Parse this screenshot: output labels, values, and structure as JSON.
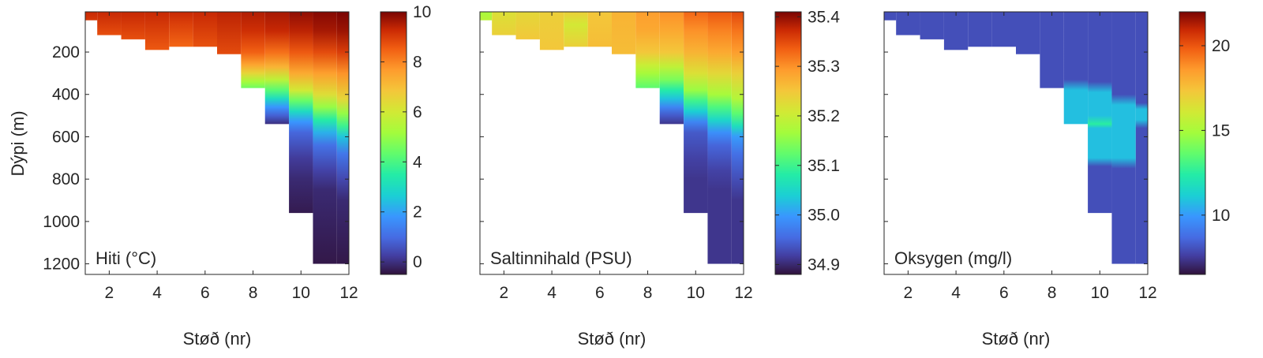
{
  "figure": {
    "ylabel": "Dýpi (m)",
    "xlabel": "Støð (nr)"
  },
  "chart_data": [
    {
      "type": "heatmap",
      "panel_label": "Hiti (°C)",
      "xlabel": "Støð (nr)",
      "ylabel": "Dýpi (m)",
      "xlim": [
        1,
        12
      ],
      "ylim": [
        1250,
        10
      ],
      "xticks": [
        2,
        4,
        6,
        8,
        10,
        12
      ],
      "yticks": [
        200,
        400,
        600,
        800,
        1000,
        1200
      ],
      "colorbar": {
        "ticks": [
          "0",
          "2",
          "4",
          "6",
          "8",
          "10"
        ],
        "min": -0.5,
        "max": 10
      },
      "stations": [
        1,
        2,
        3,
        4,
        5,
        6,
        7,
        8,
        9,
        10,
        11,
        12
      ],
      "bottom_depth_m": [
        50,
        120,
        140,
        190,
        175,
        175,
        210,
        370,
        540,
        960,
        1200,
        1200
      ],
      "profiles": [
        [
          [
            10,
            9.3
          ],
          [
            60,
            9.0
          ]
        ],
        [
          [
            10,
            9.3
          ],
          [
            130,
            8.7
          ]
        ],
        [
          [
            10,
            9.3
          ],
          [
            150,
            8.7
          ]
        ],
        [
          [
            10,
            9.3
          ],
          [
            190,
            8.6
          ]
        ],
        [
          [
            10,
            9.3
          ],
          [
            60,
            9.0
          ],
          [
            180,
            8.4
          ]
        ],
        [
          [
            10,
            9.3
          ],
          [
            180,
            8.7
          ]
        ],
        [
          [
            10,
            9.4
          ],
          [
            210,
            8.8
          ]
        ],
        [
          [
            10,
            9.5
          ],
          [
            100,
            9.2
          ],
          [
            200,
            8.5
          ],
          [
            260,
            7.5
          ],
          [
            300,
            6.5
          ],
          [
            340,
            5.2
          ],
          [
            370,
            4.5
          ]
        ],
        [
          [
            10,
            9.6
          ],
          [
            100,
            9.3
          ],
          [
            200,
            8.3
          ],
          [
            270,
            7.2
          ],
          [
            330,
            5.6
          ],
          [
            380,
            4.2
          ],
          [
            420,
            3.0
          ],
          [
            460,
            1.8
          ],
          [
            500,
            0.8
          ],
          [
            540,
            0.0
          ]
        ],
        [
          [
            10,
            9.8
          ],
          [
            100,
            9.4
          ],
          [
            200,
            8.6
          ],
          [
            300,
            7.4
          ],
          [
            380,
            6.0
          ],
          [
            430,
            4.4
          ],
          [
            480,
            3.0
          ],
          [
            530,
            1.8
          ],
          [
            580,
            0.9
          ],
          [
            700,
            0.2
          ],
          [
            800,
            -0.1
          ],
          [
            960,
            -0.35
          ]
        ],
        [
          [
            10,
            9.9
          ],
          [
            100,
            9.6
          ],
          [
            200,
            8.8
          ],
          [
            300,
            7.6
          ],
          [
            400,
            6.3
          ],
          [
            460,
            5.0
          ],
          [
            520,
            3.5
          ],
          [
            580,
            2.2
          ],
          [
            640,
            1.1
          ],
          [
            760,
            0.3
          ],
          [
            850,
            -0.1
          ],
          [
            1200,
            -0.4
          ]
        ],
        [
          [
            10,
            10.0
          ],
          [
            100,
            9.7
          ],
          [
            200,
            9.0
          ],
          [
            300,
            7.8
          ],
          [
            420,
            6.5
          ],
          [
            490,
            5.0
          ],
          [
            550,
            3.8
          ],
          [
            600,
            2.5
          ],
          [
            680,
            1.2
          ],
          [
            800,
            0.4
          ],
          [
            900,
            -0.1
          ],
          [
            1200,
            -0.4
          ]
        ]
      ]
    },
    {
      "type": "heatmap",
      "panel_label": "Saltinnihald (PSU)",
      "xlabel": "Støð (nr)",
      "ylabel": "",
      "xlim": [
        1,
        12
      ],
      "ylim": [
        1250,
        10
      ],
      "xticks": [
        2,
        4,
        6,
        8,
        10,
        12
      ],
      "yticks": [
        200,
        400,
        600,
        800,
        1000,
        1200
      ],
      "colorbar": {
        "ticks": [
          "34.9",
          "35.0",
          "35.1",
          "35.2",
          "35.3",
          "35.4"
        ],
        "min": 34.88,
        "max": 35.41
      },
      "stations": [
        1,
        2,
        3,
        4,
        5,
        6,
        7,
        8,
        9,
        10,
        11,
        12
      ],
      "bottom_depth_m": [
        50,
        120,
        140,
        190,
        175,
        175,
        210,
        370,
        540,
        960,
        1200,
        1200
      ],
      "profiles": [
        [
          [
            10,
            35.17
          ],
          [
            60,
            35.19
          ]
        ],
        [
          [
            10,
            35.22
          ],
          [
            130,
            35.24
          ]
        ],
        [
          [
            10,
            35.23
          ],
          [
            150,
            35.25
          ]
        ],
        [
          [
            10,
            35.24
          ],
          [
            190,
            35.25
          ]
        ],
        [
          [
            10,
            35.24
          ],
          [
            70,
            35.21
          ],
          [
            180,
            35.24
          ]
        ],
        [
          [
            10,
            35.25
          ],
          [
            180,
            35.26
          ]
        ],
        [
          [
            10,
            35.27
          ],
          [
            210,
            35.26
          ]
        ],
        [
          [
            10,
            35.29
          ],
          [
            100,
            35.28
          ],
          [
            200,
            35.25
          ],
          [
            260,
            35.2
          ],
          [
            300,
            35.17
          ],
          [
            340,
            35.14
          ],
          [
            370,
            35.12
          ]
        ],
        [
          [
            10,
            35.3
          ],
          [
            100,
            35.28
          ],
          [
            200,
            35.25
          ],
          [
            270,
            35.19
          ],
          [
            330,
            35.14
          ],
          [
            380,
            35.08
          ],
          [
            420,
            35.03
          ],
          [
            460,
            34.98
          ],
          [
            500,
            34.94
          ],
          [
            540,
            34.91
          ]
        ],
        [
          [
            10,
            35.33
          ],
          [
            100,
            35.3
          ],
          [
            200,
            35.27
          ],
          [
            300,
            35.22
          ],
          [
            380,
            35.16
          ],
          [
            430,
            35.1
          ],
          [
            480,
            35.04
          ],
          [
            530,
            34.98
          ],
          [
            580,
            34.94
          ],
          [
            700,
            34.92
          ],
          [
            800,
            34.91
          ],
          [
            960,
            34.91
          ]
        ],
        [
          [
            10,
            35.34
          ],
          [
            100,
            35.31
          ],
          [
            200,
            35.28
          ],
          [
            300,
            35.23
          ],
          [
            400,
            35.17
          ],
          [
            460,
            35.11
          ],
          [
            520,
            35.05
          ],
          [
            580,
            34.99
          ],
          [
            640,
            34.95
          ],
          [
            760,
            34.92
          ],
          [
            850,
            34.91
          ],
          [
            1200,
            34.91
          ]
        ],
        [
          [
            10,
            35.35
          ],
          [
            100,
            35.32
          ],
          [
            200,
            35.29
          ],
          [
            300,
            35.24
          ],
          [
            420,
            35.18
          ],
          [
            490,
            35.12
          ],
          [
            550,
            35.06
          ],
          [
            600,
            35.0
          ],
          [
            680,
            34.96
          ],
          [
            800,
            34.93
          ],
          [
            900,
            34.91
          ],
          [
            1200,
            34.91
          ]
        ]
      ]
    },
    {
      "type": "heatmap",
      "panel_label": "Oksygen (mg/l)",
      "xlabel": "Støð (nr)",
      "ylabel": "",
      "xlim": [
        1,
        12
      ],
      "ylim": [
        1250,
        10
      ],
      "xticks": [
        2,
        4,
        6,
        8,
        10,
        12
      ],
      "yticks": [
        200,
        400,
        600,
        800,
        1000,
        1200
      ],
      "colorbar": {
        "ticks": [
          "10",
          "15",
          "20"
        ],
        "min": 6.5,
        "max": 22
      },
      "stations": [
        1,
        2,
        3,
        4,
        5,
        6,
        7,
        8,
        9,
        10,
        11,
        12
      ],
      "bottom_depth_m": [
        50,
        120,
        140,
        190,
        175,
        175,
        210,
        370,
        540,
        960,
        1200,
        1200
      ],
      "profiles": [
        [
          [
            10,
            8.0
          ],
          [
            60,
            8.0
          ]
        ],
        [
          [
            10,
            8.0
          ],
          [
            130,
            8.0
          ]
        ],
        [
          [
            10,
            8.0
          ],
          [
            150,
            8.0
          ]
        ],
        [
          [
            10,
            8.0
          ],
          [
            190,
            8.0
          ]
        ],
        [
          [
            10,
            8.0
          ],
          [
            180,
            8.0
          ]
        ],
        [
          [
            10,
            8.0
          ],
          [
            180,
            8.0
          ]
        ],
        [
          [
            10,
            8.0
          ],
          [
            210,
            8.0
          ]
        ],
        [
          [
            10,
            8.0
          ],
          [
            370,
            8.0
          ]
        ],
        [
          [
            10,
            8.0
          ],
          [
            330,
            8.0
          ],
          [
            380,
            10.8
          ],
          [
            540,
            10.8
          ]
        ],
        [
          [
            10,
            8.0
          ],
          [
            340,
            8.0
          ],
          [
            390,
            10.8
          ],
          [
            500,
            10.8
          ],
          [
            540,
            12.5
          ],
          [
            560,
            10.8
          ],
          [
            700,
            10.8
          ],
          [
            740,
            8.0
          ],
          [
            960,
            8.0
          ]
        ],
        [
          [
            10,
            8.0
          ],
          [
            400,
            8.0
          ],
          [
            450,
            10.8
          ],
          [
            700,
            10.8
          ],
          [
            750,
            8.0
          ],
          [
            1200,
            8.0
          ]
        ],
        [
          [
            10,
            8.0
          ],
          [
            440,
            8.0
          ],
          [
            470,
            10.8
          ],
          [
            520,
            10.8
          ],
          [
            560,
            8.0
          ],
          [
            1200,
            8.0
          ]
        ]
      ]
    }
  ]
}
